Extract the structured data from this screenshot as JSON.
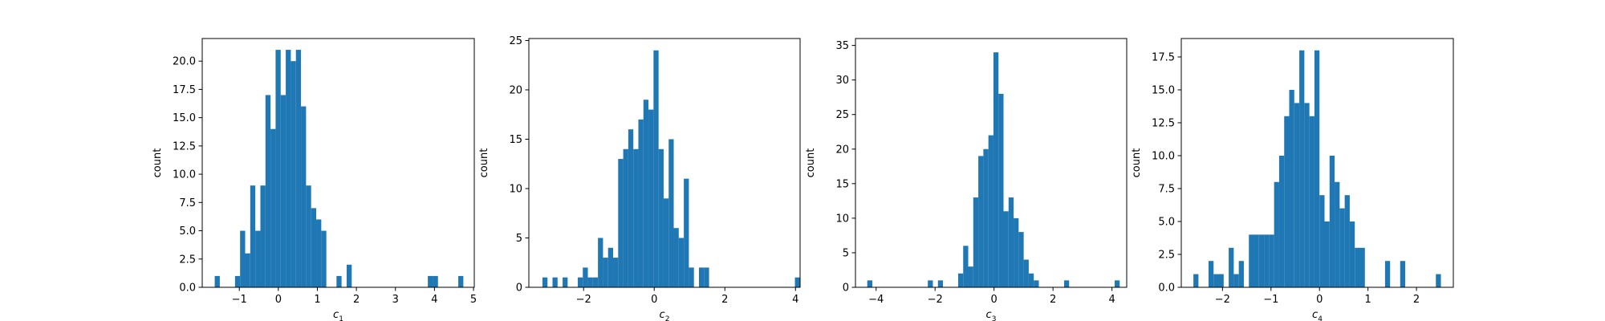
{
  "colors": {
    "bar": "#1f77b4",
    "axis": "#000000",
    "background": "#ffffff"
  },
  "chart_data": [
    {
      "type": "bar",
      "subtype": "histogram",
      "xlabel_base": "c",
      "xlabel_sub": "1",
      "ylabel": "count",
      "xlim": [
        -1.95,
        5.02
      ],
      "ylim": [
        0,
        22
      ],
      "bin_width": 0.13,
      "xticks": [
        -1,
        0,
        1,
        2,
        3,
        4,
        5
      ],
      "xtick_labels": [
        "−1",
        "0",
        "1",
        "2",
        "3",
        "4",
        "5"
      ],
      "yticks": [
        0,
        2.5,
        5,
        7.5,
        10,
        12.5,
        15,
        17.5,
        20
      ],
      "ytick_labels": [
        "0.0",
        "2.5",
        "5.0",
        "7.5",
        "10.0",
        "12.5",
        "15.0",
        "17.5",
        "20.0"
      ],
      "bins_left": [
        -1.63,
        -1.11,
        -0.98,
        -0.85,
        -0.72,
        -0.59,
        -0.46,
        -0.33,
        -0.2,
        -0.07,
        0.06,
        0.19,
        0.32,
        0.45,
        0.58,
        0.71,
        0.84,
        0.97,
        1.1,
        1.49,
        1.75,
        3.83,
        3.96,
        4.61
      ],
      "counts": [
        1,
        1,
        5,
        3,
        9,
        5,
        9,
        17,
        14,
        21,
        17,
        21,
        20,
        21,
        16,
        9,
        7,
        6,
        5,
        1,
        2,
        1,
        1,
        1
      ],
      "title": ""
    },
    {
      "type": "bar",
      "subtype": "histogram",
      "xlabel_base": "c",
      "xlabel_sub": "2",
      "ylabel": "count",
      "xlim": [
        -3.55,
        4.13
      ],
      "ylim": [
        0,
        25.2
      ],
      "bin_width": 0.143,
      "xticks": [
        -2,
        0,
        2,
        4
      ],
      "xtick_labels": [
        "−2",
        "0",
        "2",
        "4"
      ],
      "yticks": [
        0,
        5,
        10,
        15,
        20,
        25
      ],
      "ytick_labels": [
        "0",
        "5",
        "10",
        "15",
        "20",
        "25"
      ],
      "bins_left": [
        -3.165,
        -2.88,
        -2.594,
        -2.165,
        -2.022,
        -1.879,
        -1.736,
        -1.593,
        -1.45,
        -1.307,
        -1.164,
        -1.021,
        -0.878,
        -0.735,
        -0.592,
        -0.449,
        -0.306,
        -0.163,
        -0.02,
        0.123,
        0.266,
        0.409,
        0.552,
        0.695,
        0.838,
        0.981,
        1.267,
        1.41,
        3.983
      ],
      "counts": [
        1,
        1,
        1,
        1,
        2,
        1,
        1,
        5,
        3,
        4,
        3,
        13,
        14,
        16,
        14,
        17,
        19,
        18,
        24,
        14,
        9,
        15,
        6,
        5,
        11,
        2,
        2,
        2,
        1
      ],
      "title": ""
    },
    {
      "type": "bar",
      "subtype": "histogram",
      "xlabel_base": "c",
      "xlabel_sub": "3",
      "ylabel": "count",
      "xlim": [
        -4.7,
        4.5
      ],
      "ylim": [
        0,
        36
      ],
      "bin_width": 0.171,
      "xticks": [
        -4,
        -2,
        0,
        2,
        4
      ],
      "xtick_labels": [
        "−4",
        "−2",
        "0",
        "2",
        "4"
      ],
      "yticks": [
        0,
        5,
        10,
        15,
        20,
        25,
        30,
        35
      ],
      "ytick_labels": [
        "0",
        "5",
        "10",
        "15",
        "20",
        "25",
        "30",
        "35"
      ],
      "bins_left": [
        -4.3,
        -2.245,
        -1.903,
        -1.217,
        -1.046,
        -0.875,
        -0.704,
        -0.533,
        -0.362,
        -0.191,
        -0.02,
        0.151,
        0.322,
        0.493,
        0.664,
        0.835,
        1.006,
        1.177,
        1.348,
        2.376,
        4.091
      ],
      "counts": [
        1,
        1,
        1,
        2,
        6,
        3,
        13,
        19,
        20,
        22,
        34,
        28,
        11,
        13,
        10,
        8,
        4,
        2,
        1,
        1,
        1
      ],
      "title": ""
    },
    {
      "type": "bar",
      "subtype": "histogram",
      "xlabel_base": "c",
      "xlabel_sub": "4",
      "ylabel": "count",
      "xlim": [
        -2.85,
        2.76
      ],
      "ylim": [
        0,
        18.9
      ],
      "bin_width": 0.104,
      "xticks": [
        -2,
        -1,
        0,
        1,
        2
      ],
      "xtick_labels": [
        "−2",
        "−1",
        "0",
        "1",
        "2"
      ],
      "yticks": [
        0,
        2.5,
        5,
        7.5,
        10,
        12.5,
        15,
        17.5
      ],
      "ytick_labels": [
        "0.0",
        "2.5",
        "5.0",
        "7.5",
        "10.0",
        "12.5",
        "15.0",
        "17.5"
      ],
      "bins_left": [
        -2.6,
        -2.288,
        -2.184,
        -2.08,
        -1.872,
        -1.768,
        -1.664,
        -1.456,
        -1.352,
        -1.248,
        -1.144,
        -1.04,
        -0.936,
        -0.832,
        -0.728,
        -0.624,
        -0.52,
        -0.416,
        -0.312,
        -0.208,
        -0.104,
        0,
        0.104,
        0.208,
        0.312,
        0.416,
        0.52,
        0.624,
        0.728,
        0.832,
        1.352,
        1.664,
        2.4
      ],
      "counts": [
        1,
        2,
        1,
        1,
        3,
        1,
        2,
        4,
        4,
        4,
        4,
        4,
        8,
        10,
        13,
        15,
        14,
        18,
        14,
        13,
        18,
        7,
        5,
        10,
        8,
        6,
        7,
        5,
        3,
        3,
        2,
        2,
        1
      ],
      "title": ""
    }
  ]
}
